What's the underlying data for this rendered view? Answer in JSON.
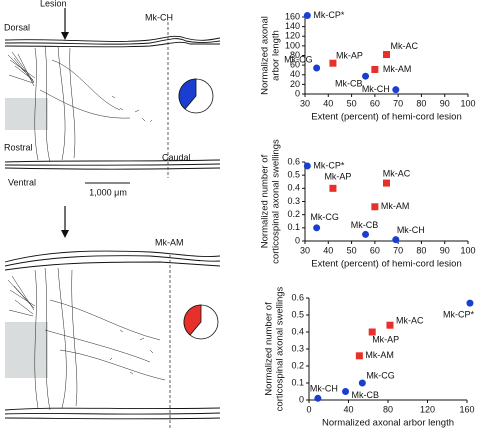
{
  "tracings": [
    {
      "lesion": "Lesion",
      "case": "Mk-CH",
      "dorsal": "Dorsal",
      "rostral": "Rostral",
      "caudal": "Caudal",
      "ventral": "Ventral",
      "scale": "1,000 μm"
    },
    {
      "case": "Mk-AM"
    }
  ],
  "chart_data": [
    {
      "type": "scatter",
      "xlabel": "Extent (percent) of hemi-cord lesion",
      "ylabel": [
        "Normalized axonal",
        "arbor length"
      ],
      "x": [
        31,
        35,
        42,
        56,
        60,
        65,
        69
      ],
      "values": [
        163,
        54,
        64,
        37,
        51,
        82,
        9
      ],
      "labels": [
        "Mk-CP*",
        "Mk-CG",
        "Mk-AP",
        "Mk-CB",
        "Mk-AM",
        "Mk-AC",
        "Mk-CH"
      ],
      "colors": [
        "#1a3fd0",
        "#1a3fd0",
        "#e8302a",
        "#1a3fd0",
        "#e8302a",
        "#e8302a",
        "#1a3fd0"
      ],
      "markers": [
        "circle",
        "circle",
        "square",
        "circle",
        "square",
        "square",
        "circle"
      ],
      "xlim": [
        30,
        100
      ],
      "xticks": [
        30,
        40,
        50,
        60,
        70,
        80,
        90,
        100
      ],
      "ylim": [
        0,
        160
      ],
      "yticks": [
        0,
        20,
        40,
        60,
        80,
        100,
        120,
        140,
        160
      ]
    },
    {
      "type": "scatter",
      "xlabel": "Extent (percent) of hemi-cord lesion",
      "ylabel": [
        "Normalized number of",
        "corticospinal axonal swellings"
      ],
      "x": [
        31,
        35,
        42,
        56,
        60,
        65,
        69
      ],
      "values": [
        0.57,
        0.1,
        0.4,
        0.05,
        0.26,
        0.44,
        0.01
      ],
      "labels": [
        "Mk-CP*",
        "Mk-CG",
        "Mk-AP",
        "Mk-CB",
        "Mk-AM",
        "Mk-AC",
        "Mk-CH"
      ],
      "colors": [
        "#1a3fd0",
        "#1a3fd0",
        "#e8302a",
        "#1a3fd0",
        "#e8302a",
        "#e8302a",
        "#1a3fd0"
      ],
      "markers": [
        "circle",
        "circle",
        "square",
        "circle",
        "square",
        "square",
        "circle"
      ],
      "xlim": [
        30,
        100
      ],
      "xticks": [
        30,
        40,
        50,
        60,
        70,
        80,
        90,
        100
      ],
      "ylim": [
        0,
        0.6
      ],
      "yticks": [
        0,
        0.1,
        0.2,
        0.3,
        0.4,
        0.5,
        0.6
      ]
    },
    {
      "type": "scatter",
      "xlabel": "Normalized axonal arbor length",
      "ylabel": [
        "Normalized number of",
        "corticospinal axonal swellings"
      ],
      "x": [
        163,
        54,
        64,
        37,
        51,
        82,
        9
      ],
      "values": [
        0.57,
        0.1,
        0.4,
        0.05,
        0.26,
        0.44,
        0.01
      ],
      "labels": [
        "Mk-CP*",
        "Mk-CG",
        "Mk-AP",
        "Mk-CB",
        "Mk-AM",
        "Mk-AC",
        "Mk-CH"
      ],
      "colors": [
        "#1a3fd0",
        "#1a3fd0",
        "#e8302a",
        "#1a3fd0",
        "#e8302a",
        "#e8302a",
        "#1a3fd0"
      ],
      "markers": [
        "circle",
        "circle",
        "square",
        "circle",
        "square",
        "square",
        "circle"
      ],
      "xlim": [
        0,
        160
      ],
      "xticks": [
        0,
        40,
        80,
        120,
        160
      ],
      "ylim": [
        0,
        0.6
      ],
      "yticks": [
        0,
        0.1,
        0.2,
        0.3,
        0.4,
        0.5,
        0.6
      ]
    }
  ]
}
